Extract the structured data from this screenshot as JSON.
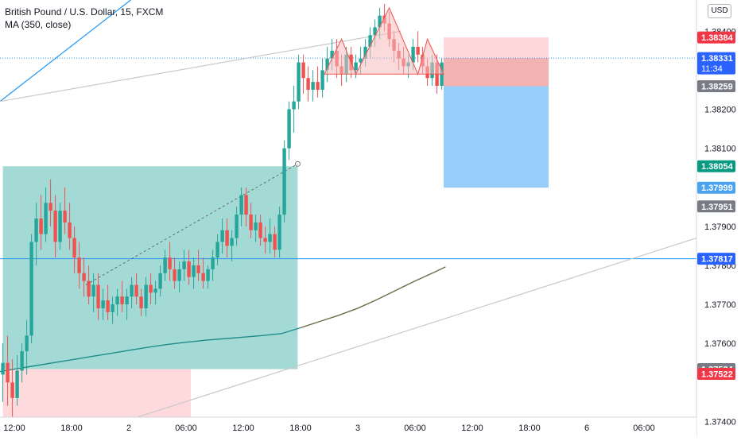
{
  "header": {
    "title": "British Pound / U.S. Dollar, 15, FXCM",
    "indicator": "MA (350, close)"
  },
  "currency_button": "USD",
  "colors": {
    "up": "#26a69a",
    "down": "#ef5350",
    "ma": "#1e8c8a",
    "ma_extension": "#6e6a4a",
    "trend": "#2196f3",
    "channel": "#c8c9cc",
    "long_target": "#b2dfdb",
    "long_stop": "#ffcdd2",
    "short_stop": "#ef9a9a",
    "short_target": "#90caf9",
    "pattern": "#f8bbc0"
  },
  "chart_data": {
    "type": "candlestick",
    "title": "British Pound / U.S. Dollar, 15, FXCM",
    "symbol": "GBPUSD",
    "timeframe": "15",
    "source": "FXCM",
    "y_axis": {
      "range": [
        1.3736,
        1.3848
      ],
      "ticks": [
        "1.38400",
        "1.38200",
        "1.38100",
        "1.37900",
        "1.37800",
        "1.37700",
        "1.37600",
        "1.37400"
      ],
      "tick_values": [
        1.384,
        1.382,
        1.381,
        1.379,
        1.378,
        1.377,
        1.376,
        1.374
      ],
      "position": "right"
    },
    "x_axis": {
      "ticks": [
        "12:00",
        "18:00",
        "2",
        "06:00",
        "12:00",
        "18:00",
        "3",
        "06:00",
        "12:00",
        "18:00",
        "6",
        "06:00"
      ],
      "hours": [
        12,
        18,
        24,
        30,
        36,
        42,
        48,
        54,
        60,
        66,
        72,
        78
      ],
      "range": [
        10.5,
        83.5
      ]
    },
    "price_labels": [
      {
        "value": "1.38384",
        "price": 1.38384,
        "style": "red"
      },
      {
        "value": "1.38331",
        "sub": "11:34",
        "price": 1.38331,
        "style": "blue"
      },
      {
        "value": "1.38259",
        "price": 1.38259,
        "style": "gray"
      },
      {
        "value": "1.38054",
        "price": 1.38054,
        "style": "teal"
      },
      {
        "value": "1.37999",
        "price": 1.37999,
        "style": "lightblue"
      },
      {
        "value": "1.37951",
        "price": 1.37951,
        "style": "gray"
      },
      {
        "value": "1.37817",
        "price": 1.37817,
        "style": "blue"
      },
      {
        "value": "1.37534",
        "price": 1.37534,
        "style": "gray"
      },
      {
        "value": "1.37522",
        "price": 1.37522,
        "style": "red"
      }
    ],
    "candles": [
      [
        10.8,
        1.3752,
        1.376,
        1.3745,
        1.3755
      ],
      [
        11.3,
        1.3755,
        1.3762,
        1.3744,
        1.375
      ],
      [
        11.8,
        1.375,
        1.3756,
        1.3741,
        1.3746
      ],
      [
        12.3,
        1.3746,
        1.3757,
        1.3744,
        1.3753
      ],
      [
        12.8,
        1.3753,
        1.376,
        1.375,
        1.3758
      ],
      [
        13.3,
        1.3758,
        1.3766,
        1.3752,
        1.3762
      ],
      [
        13.8,
        1.3762,
        1.3788,
        1.376,
        1.3786
      ],
      [
        14.3,
        1.3786,
        1.3796,
        1.378,
        1.3792
      ],
      [
        14.8,
        1.3792,
        1.3798,
        1.3784,
        1.3788
      ],
      [
        15.3,
        1.3788,
        1.38,
        1.3786,
        1.3796
      ],
      [
        15.8,
        1.3796,
        1.3802,
        1.379,
        1.3794
      ],
      [
        16.3,
        1.3794,
        1.3798,
        1.3782,
        1.3786
      ],
      [
        16.8,
        1.3786,
        1.3796,
        1.3784,
        1.3794
      ],
      [
        17.3,
        1.3794,
        1.38,
        1.3788,
        1.3791
      ],
      [
        17.8,
        1.3791,
        1.3796,
        1.3784,
        1.3787
      ],
      [
        18.3,
        1.3787,
        1.379,
        1.3778,
        1.3782
      ],
      [
        18.8,
        1.3782,
        1.3786,
        1.3774,
        1.3778
      ],
      [
        19.3,
        1.3778,
        1.3782,
        1.3772,
        1.3776
      ],
      [
        19.8,
        1.3776,
        1.378,
        1.377,
        1.3772
      ],
      [
        20.3,
        1.3772,
        1.3778,
        1.3768,
        1.3775
      ],
      [
        20.8,
        1.3775,
        1.3778,
        1.3766,
        1.3769
      ],
      [
        21.3,
        1.3769,
        1.3774,
        1.3766,
        1.3771
      ],
      [
        21.8,
        1.3771,
        1.3775,
        1.3766,
        1.3768
      ],
      [
        22.3,
        1.3768,
        1.3772,
        1.3765,
        1.377
      ],
      [
        22.8,
        1.377,
        1.3774,
        1.3767,
        1.3772
      ],
      [
        23.3,
        1.3772,
        1.3776,
        1.3768,
        1.377
      ],
      [
        23.8,
        1.377,
        1.3774,
        1.3766,
        1.3772
      ],
      [
        24.3,
        1.3772,
        1.3777,
        1.3769,
        1.3775
      ],
      [
        24.8,
        1.3775,
        1.3778,
        1.377,
        1.3772
      ],
      [
        25.3,
        1.3772,
        1.3774,
        1.3767,
        1.3769
      ],
      [
        25.8,
        1.3769,
        1.3777,
        1.3767,
        1.3775
      ],
      [
        26.3,
        1.3775,
        1.3778,
        1.377,
        1.3773
      ],
      [
        26.8,
        1.3773,
        1.3776,
        1.377,
        1.3774
      ],
      [
        27.3,
        1.3774,
        1.378,
        1.3772,
        1.3778
      ],
      [
        27.8,
        1.3778,
        1.3784,
        1.3776,
        1.3782
      ],
      [
        28.3,
        1.3782,
        1.3786,
        1.3776,
        1.3779
      ],
      [
        28.8,
        1.3779,
        1.3782,
        1.3774,
        1.3776
      ],
      [
        29.3,
        1.3776,
        1.3781,
        1.3773,
        1.3779
      ],
      [
        29.8,
        1.3779,
        1.3784,
        1.3776,
        1.3781
      ],
      [
        30.3,
        1.3781,
        1.3784,
        1.3775,
        1.3777
      ],
      [
        30.8,
        1.3777,
        1.3782,
        1.3774,
        1.378
      ],
      [
        31.3,
        1.378,
        1.3784,
        1.3776,
        1.3778
      ],
      [
        31.8,
        1.3778,
        1.3782,
        1.3774,
        1.3776
      ],
      [
        32.3,
        1.3776,
        1.378,
        1.3774,
        1.3779
      ],
      [
        32.8,
        1.3779,
        1.3784,
        1.3776,
        1.3782
      ],
      [
        33.3,
        1.3782,
        1.3788,
        1.378,
        1.3786
      ],
      [
        33.8,
        1.3786,
        1.3792,
        1.3783,
        1.3789
      ],
      [
        34.3,
        1.3789,
        1.3792,
        1.3782,
        1.3785
      ],
      [
        34.8,
        1.3785,
        1.3789,
        1.3781,
        1.3787
      ],
      [
        35.3,
        1.3787,
        1.3795,
        1.3785,
        1.3793
      ],
      [
        35.8,
        1.3793,
        1.38,
        1.379,
        1.3798
      ],
      [
        36.3,
        1.3798,
        1.38,
        1.379,
        1.3793
      ],
      [
        36.8,
        1.3793,
        1.3796,
        1.3787,
        1.3789
      ],
      [
        37.3,
        1.3789,
        1.3793,
        1.3786,
        1.3791
      ],
      [
        37.8,
        1.3791,
        1.3793,
        1.3785,
        1.3787
      ],
      [
        38.3,
        1.3787,
        1.379,
        1.3783,
        1.3786
      ],
      [
        38.8,
        1.3786,
        1.3792,
        1.3783,
        1.3788
      ],
      [
        39.3,
        1.3788,
        1.379,
        1.3782,
        1.3784
      ],
      [
        39.8,
        1.3784,
        1.3795,
        1.3782,
        1.3793
      ],
      [
        40.3,
        1.3793,
        1.3812,
        1.3791,
        1.381
      ],
      [
        40.8,
        1.381,
        1.3822,
        1.3807,
        1.382
      ],
      [
        41.3,
        1.382,
        1.3826,
        1.3814,
        1.3822
      ],
      [
        41.8,
        1.3822,
        1.3834,
        1.382,
        1.3832
      ],
      [
        42.3,
        1.3832,
        1.3834,
        1.3824,
        1.3828
      ],
      [
        42.8,
        1.3828,
        1.3831,
        1.3822,
        1.3825
      ],
      [
        43.3,
        1.3825,
        1.383,
        1.3822,
        1.3827
      ],
      [
        43.8,
        1.3827,
        1.3831,
        1.3823,
        1.3825
      ],
      [
        44.3,
        1.3825,
        1.3833,
        1.3823,
        1.383
      ],
      [
        44.8,
        1.383,
        1.3836,
        1.3827,
        1.3833
      ],
      [
        45.3,
        1.3833,
        1.3838,
        1.383,
        1.3835
      ],
      [
        45.8,
        1.3835,
        1.3838,
        1.3828,
        1.3831
      ],
      [
        46.3,
        1.3831,
        1.3834,
        1.3826,
        1.3829
      ],
      [
        46.8,
        1.3829,
        1.3836,
        1.3827,
        1.3834
      ],
      [
        47.3,
        1.3834,
        1.3836,
        1.3828,
        1.383
      ],
      [
        47.8,
        1.383,
        1.3834,
        1.3828,
        1.3832
      ],
      [
        48.3,
        1.3832,
        1.3836,
        1.3829,
        1.3833
      ],
      [
        48.8,
        1.3833,
        1.3838,
        1.3831,
        1.3836
      ],
      [
        49.3,
        1.3836,
        1.3841,
        1.3833,
        1.3839
      ],
      [
        49.8,
        1.3839,
        1.3843,
        1.3836,
        1.3841
      ],
      [
        50.3,
        1.3841,
        1.3846,
        1.3838,
        1.3844
      ],
      [
        50.8,
        1.3844,
        1.3847,
        1.384,
        1.3842
      ],
      [
        51.3,
        1.3842,
        1.3845,
        1.3836,
        1.3838
      ],
      [
        51.8,
        1.3838,
        1.384,
        1.3832,
        1.3835
      ],
      [
        52.3,
        1.3835,
        1.3837,
        1.383,
        1.3833
      ],
      [
        52.8,
        1.3833,
        1.3836,
        1.3829,
        1.3831
      ],
      [
        53.3,
        1.3831,
        1.3834,
        1.3828,
        1.3832
      ],
      [
        53.8,
        1.3832,
        1.3838,
        1.383,
        1.3836
      ],
      [
        54.3,
        1.3836,
        1.384,
        1.3832,
        1.3834
      ],
      [
        54.8,
        1.3834,
        1.3836,
        1.3829,
        1.3831
      ],
      [
        55.3,
        1.3831,
        1.3833,
        1.3826,
        1.3828
      ],
      [
        55.8,
        1.3828,
        1.3834,
        1.3826,
        1.3832
      ],
      [
        56.3,
        1.3832,
        1.3834,
        1.3824,
        1.3826
      ],
      [
        56.8,
        1.3826,
        1.3833,
        1.3825,
        1.3832
      ]
    ],
    "moving_average": {
      "name": "MA (350, close)",
      "points": [
        [
          10.5,
          1.37528
        ],
        [
          12,
          1.37534
        ],
        [
          14,
          1.37542
        ],
        [
          16,
          1.3755
        ],
        [
          18,
          1.37558
        ],
        [
          20,
          1.37566
        ],
        [
          22,
          1.37574
        ],
        [
          24,
          1.37582
        ],
        [
          26,
          1.3759
        ],
        [
          28,
          1.37597
        ],
        [
          30,
          1.37603
        ],
        [
          32,
          1.37608
        ],
        [
          34,
          1.37612
        ],
        [
          36,
          1.37616
        ],
        [
          38,
          1.3762
        ],
        [
          40,
          1.37625
        ],
        [
          42,
          1.3764
        ],
        [
          44,
          1.37656
        ],
        [
          46,
          1.37672
        ],
        [
          48,
          1.3769
        ],
        [
          50,
          1.37712
        ],
        [
          52,
          1.37736
        ],
        [
          54,
          1.3776
        ],
        [
          56,
          1.37782
        ],
        [
          57.2,
          1.37796
        ]
      ]
    },
    "drawings": {
      "horizontal_lines": [
        {
          "price": 1.37817,
          "color": "trend"
        },
        {
          "price": 1.38331,
          "color": "trend",
          "dotted": true
        }
      ],
      "trend_lines": [
        {
          "from": [
            10.5,
            1.3822
          ],
          "to": [
            24.2,
            1.3848
          ],
          "color": "trend"
        },
        {
          "from": [
            10.5,
            1.3822
          ],
          "to": [
            52.5,
            1.384
          ],
          "color": "channel"
        },
        {
          "from": [
            23.5,
            1.374
          ],
          "to": [
            83.5,
            1.3787
          ],
          "color": "channel"
        }
      ],
      "dashed_line": {
        "from": [
          19.5,
          1.3775
        ],
        "to": [
          41.7,
          1.3806
        ]
      },
      "long_position": {
        "x0": 10.8,
        "x1": 30.5,
        "entry": 1.37534,
        "target": 1.38054,
        "stop": 1.374,
        "x_split": 41.7
      },
      "short_position": {
        "x0": 57.0,
        "x1": 68.0,
        "entry": 1.38331,
        "stop": 1.38384,
        "target": 1.37999,
        "fill_to": 1.38259
      },
      "head_shoulders": [
        [
          44.5,
          1.3829
        ],
        [
          46.3,
          1.3838
        ],
        [
          47.8,
          1.3829
        ],
        [
          51.3,
          1.3846
        ],
        [
          54.3,
          1.3829
        ],
        [
          55.3,
          1.3838
        ],
        [
          57.0,
          1.3829
        ]
      ]
    }
  }
}
